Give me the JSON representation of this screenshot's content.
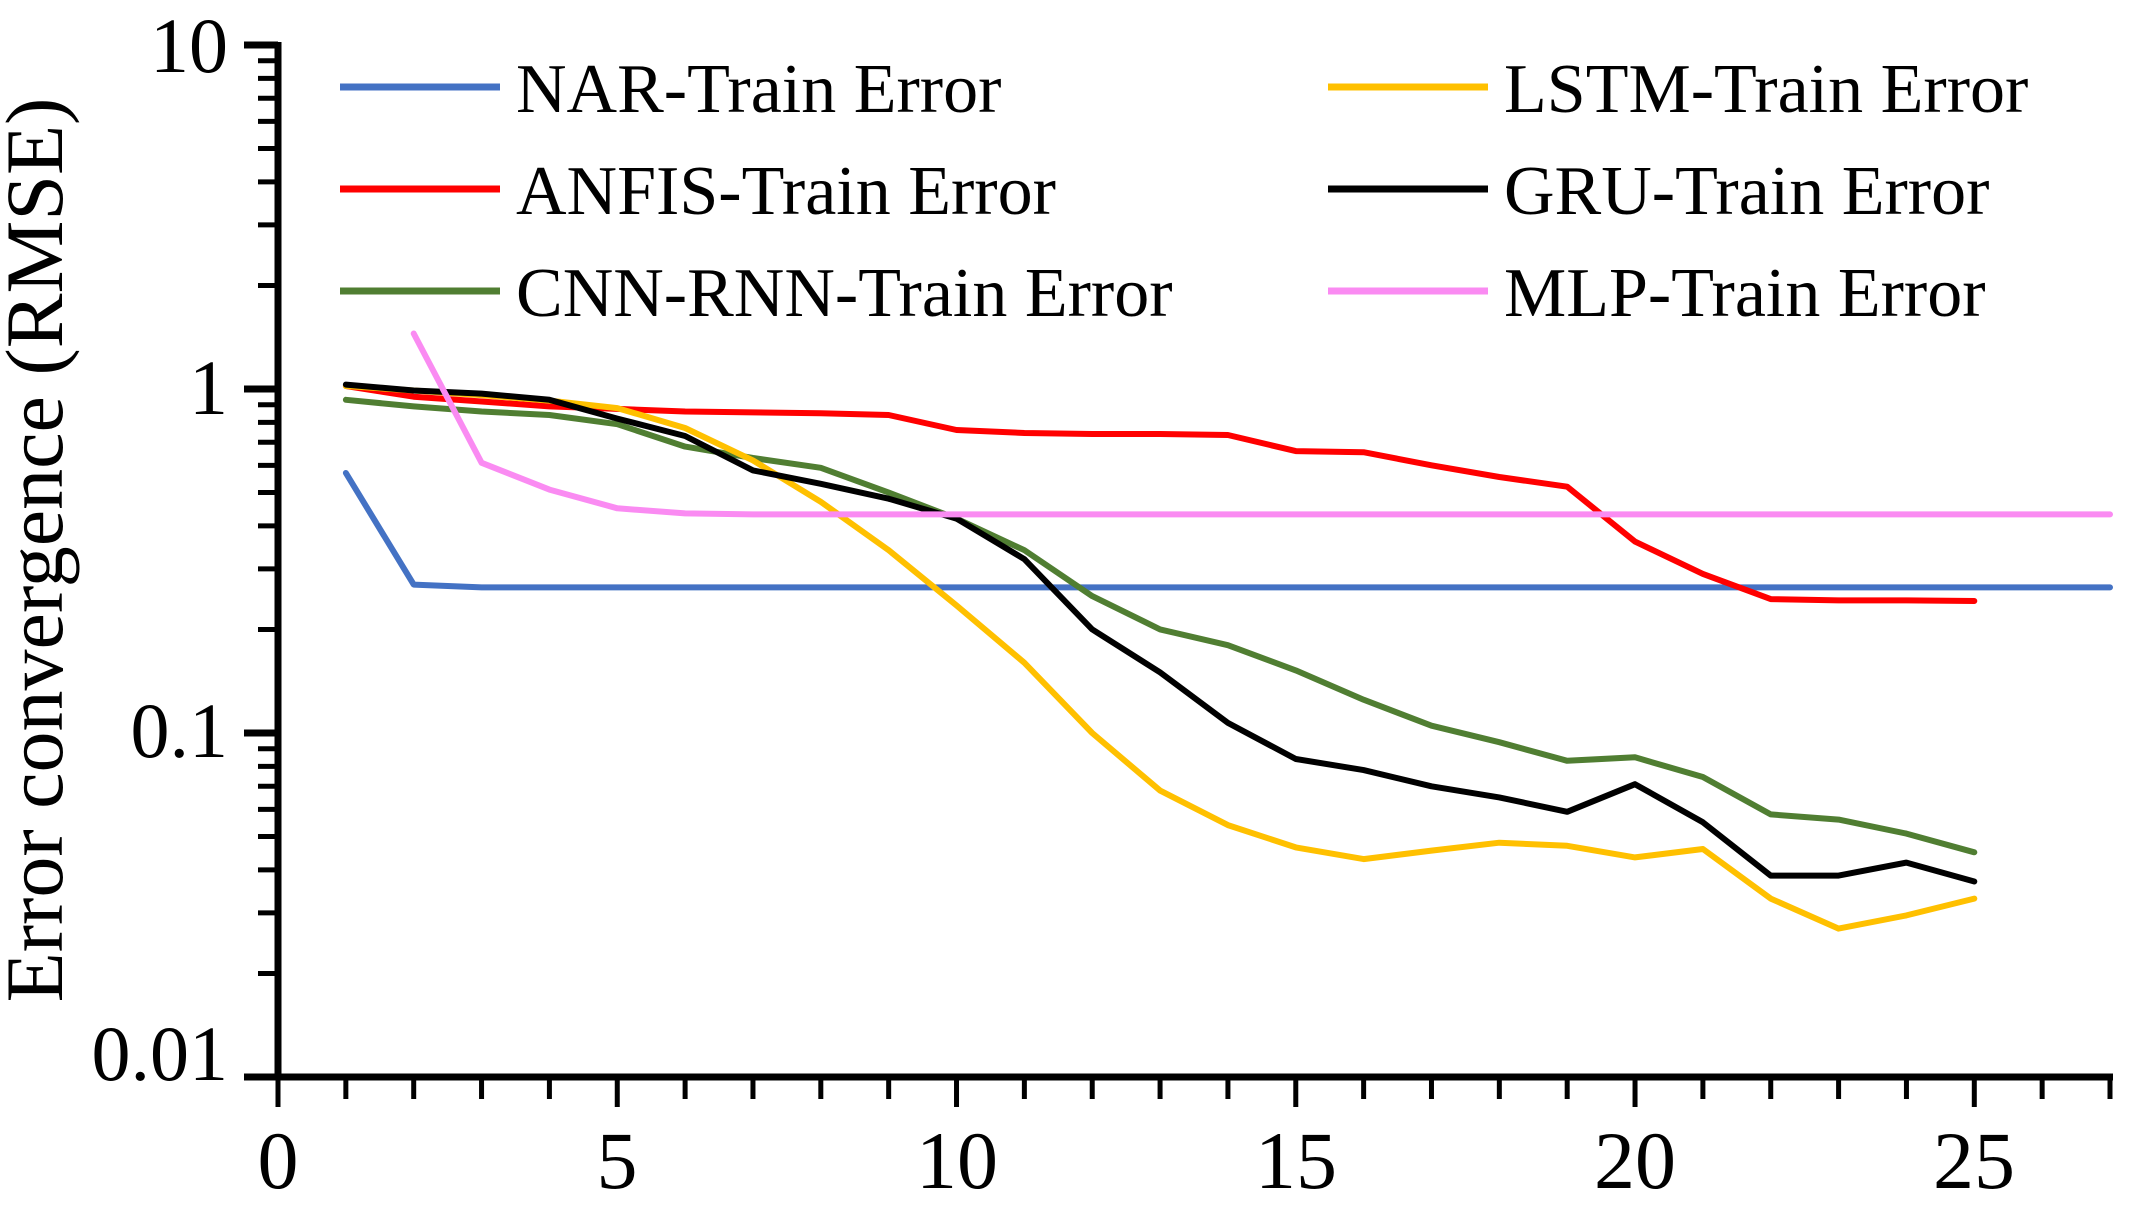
{
  "chart_data": {
    "type": "line",
    "title": "",
    "xlabel": "",
    "ylabel": "Error convergence (RMSE)",
    "y_scale": "log",
    "ylim": [
      0.01,
      10
    ],
    "xlim": [
      0,
      27
    ],
    "grid": false,
    "legend_position": "top-two-columns",
    "x_ticks_minor_step": 1,
    "x_tick_labels": [
      {
        "v": 0,
        "label": "0"
      },
      {
        "v": 5,
        "label": "5"
      },
      {
        "v": 10,
        "label": "10"
      },
      {
        "v": 15,
        "label": "15"
      },
      {
        "v": 20,
        "label": "20"
      },
      {
        "v": 25,
        "label": "25"
      }
    ],
    "y_tick_labels": [
      {
        "v": 10,
        "label": "10"
      },
      {
        "v": 1,
        "label": "1"
      },
      {
        "v": 0.1,
        "label": "0.1"
      },
      {
        "v": 0.01,
        "label": "0.01"
      }
    ],
    "series": [
      {
        "name": "NAR-Train Error",
        "color": "#4472C4",
        "x_start": 1,
        "values": [
          0.57,
          0.27,
          0.265,
          0.265,
          0.265,
          0.265,
          0.265,
          0.265,
          0.265,
          0.265,
          0.265,
          0.265,
          0.265,
          0.265,
          0.265,
          0.265,
          0.265,
          0.265,
          0.265,
          0.265,
          0.265,
          0.265,
          0.265,
          0.265,
          0.265,
          0.265,
          0.265
        ]
      },
      {
        "name": "ANFIS-Train Error",
        "color": "#FF0000",
        "x_start": 1,
        "values": [
          1.02,
          0.95,
          0.92,
          0.89,
          0.875,
          0.86,
          0.855,
          0.85,
          0.84,
          0.76,
          0.745,
          0.74,
          0.74,
          0.735,
          0.66,
          0.655,
          0.6,
          0.555,
          0.52,
          0.36,
          0.29,
          0.245,
          0.243,
          0.243,
          0.242
        ]
      },
      {
        "name": "CNN-RNN-Train Error",
        "color": "#507E32",
        "x_start": 1,
        "values": [
          0.93,
          0.89,
          0.86,
          0.84,
          0.79,
          0.68,
          0.63,
          0.59,
          0.5,
          0.42,
          0.34,
          0.25,
          0.2,
          0.18,
          0.152,
          0.125,
          0.105,
          0.094,
          0.083,
          0.085,
          0.0745,
          0.058,
          0.056,
          0.051,
          0.045
        ]
      },
      {
        "name": "LSTM-Train Error",
        "color": "#FFC000",
        "x_start": 1,
        "values": [
          1.02,
          0.99,
          0.96,
          0.925,
          0.88,
          0.77,
          0.62,
          0.47,
          0.34,
          0.235,
          0.16,
          0.1,
          0.068,
          0.054,
          0.0465,
          0.043,
          0.0455,
          0.048,
          0.047,
          0.0435,
          0.046,
          0.033,
          0.027,
          0.0295,
          0.033
        ]
      },
      {
        "name": "GRU-Train Error",
        "color": "#000000",
        "x_start": 1,
        "values": [
          1.03,
          0.99,
          0.97,
          0.93,
          0.82,
          0.73,
          0.58,
          0.53,
          0.48,
          0.42,
          0.32,
          0.2,
          0.15,
          0.107,
          0.084,
          0.078,
          0.07,
          0.065,
          0.059,
          0.071,
          0.055,
          0.0385,
          0.0385,
          0.042,
          0.037
        ]
      },
      {
        "name": "MLP-Train Error",
        "color": "#FA8BF2",
        "x_start": 2,
        "values": [
          1.45,
          0.61,
          0.51,
          0.45,
          0.435,
          0.432,
          0.432,
          0.432,
          0.432,
          0.432,
          0.432,
          0.432,
          0.432,
          0.432,
          0.432,
          0.432,
          0.432,
          0.432,
          0.432,
          0.432,
          0.432,
          0.432,
          0.432,
          0.432,
          0.432,
          0.432
        ]
      }
    ],
    "legend_order_rows": [
      [
        "NAR-Train Error",
        "LSTM-Train Error"
      ],
      [
        "ANFIS-Train Error",
        "GRU-Train Error"
      ],
      [
        "CNN-RNN-Train Error",
        "MLP-Train Error"
      ]
    ]
  }
}
